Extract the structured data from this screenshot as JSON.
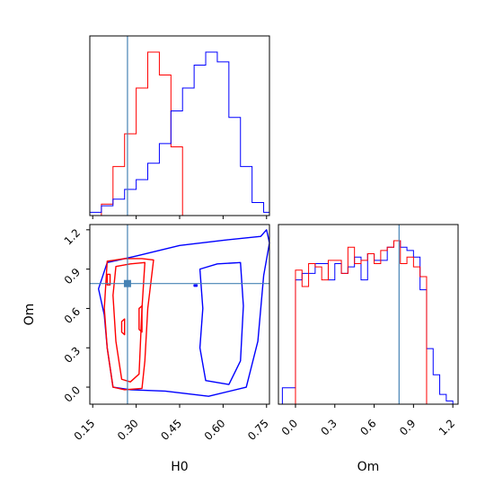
{
  "chart_data": {
    "type": "corner",
    "parameters": [
      "H0",
      "Om"
    ],
    "truth": {
      "H0": 0.27,
      "Om": 0.79
    },
    "colors": {
      "red": "#ff0000",
      "blue": "#0000ff",
      "truth": "#4682b4"
    },
    "axes": {
      "H0": {
        "range": [
          0.14,
          0.76
        ],
        "ticks": [
          0.15,
          0.3,
          0.45,
          0.6,
          0.75
        ],
        "tick_labels": [
          "0.15",
          "0.30",
          "0.45",
          "0.60",
          "0.75"
        ],
        "label": "H0"
      },
      "Om": {
        "range": [
          -0.13,
          1.24
        ],
        "ticks": [
          0.0,
          0.3,
          0.6,
          0.9,
          1.2
        ],
        "tick_labels_x": [
          "0.0",
          "0.3",
          "0.6",
          "0.9",
          "1.2"
        ],
        "tick_labels_y": [
          "0.0",
          "0.3",
          "0.6",
          "0.9",
          "1.2"
        ],
        "label": "Om"
      }
    },
    "hist_H0": {
      "bin_edges": [
        0.14,
        0.18,
        0.22,
        0.26,
        0.3,
        0.34,
        0.38,
        0.42,
        0.46,
        0.5,
        0.54,
        0.58,
        0.62,
        0.66,
        0.7,
        0.74,
        0.76
      ],
      "red": [
        0,
        0.07,
        0.3,
        0.5,
        0.78,
        1.0,
        0.86,
        0.42,
        0,
        0,
        0,
        0,
        0,
        0,
        0,
        0
      ],
      "blue": [
        0.02,
        0.06,
        0.1,
        0.16,
        0.22,
        0.32,
        0.44,
        0.64,
        0.78,
        0.92,
        1.0,
        0.94,
        0.6,
        0.3,
        0.08,
        0.02
      ]
    },
    "hist_Om": {
      "bin_edges": [
        -0.1,
        0.0,
        0.05,
        0.1,
        0.15,
        0.2,
        0.25,
        0.3,
        0.35,
        0.4,
        0.45,
        0.5,
        0.55,
        0.6,
        0.65,
        0.7,
        0.75,
        0.8,
        0.85,
        0.9,
        0.95,
        1.0,
        1.05,
        1.1,
        1.15,
        1.2
      ],
      "red": [
        0,
        0.82,
        0.72,
        0.86,
        0.84,
        0.76,
        0.88,
        0.88,
        0.8,
        0.96,
        0.86,
        0.88,
        0.92,
        0.86,
        0.94,
        0.96,
        1.0,
        0.86,
        0.9,
        0.84,
        0.78,
        0,
        0,
        0,
        0
      ],
      "blue": [
        0.1,
        0.76,
        0.8,
        0.8,
        0.86,
        0.86,
        0.76,
        0.86,
        0.8,
        0.84,
        0.9,
        0.76,
        0.92,
        0.88,
        0.88,
        0.96,
        1.0,
        0.96,
        0.94,
        0.9,
        0.7,
        0.34,
        0.18,
        0.06,
        0.02
      ]
    },
    "contours_red": [
      [
        [
          0.2,
          0.96
        ],
        [
          0.26,
          0.98
        ],
        [
          0.32,
          0.98
        ],
        [
          0.36,
          0.97
        ],
        [
          0.34,
          0.6
        ],
        [
          0.33,
          0.2
        ],
        [
          0.32,
          -0.01
        ],
        [
          0.26,
          -0.02
        ],
        [
          0.22,
          0.0
        ],
        [
          0.2,
          0.3
        ],
        [
          0.19,
          0.6
        ]
      ],
      [
        [
          0.23,
          0.92
        ],
        [
          0.28,
          0.94
        ],
        [
          0.33,
          0.95
        ],
        [
          0.32,
          0.6
        ],
        [
          0.31,
          0.1
        ],
        [
          0.28,
          0.04
        ],
        [
          0.25,
          0.06
        ],
        [
          0.23,
          0.35
        ],
        [
          0.22,
          0.7
        ]
      ],
      [
        [
          0.2,
          0.86
        ],
        [
          0.21,
          0.86
        ],
        [
          0.21,
          0.78
        ],
        [
          0.2,
          0.78
        ]
      ],
      [
        [
          0.25,
          0.5
        ],
        [
          0.26,
          0.52
        ],
        [
          0.26,
          0.4
        ],
        [
          0.25,
          0.42
        ]
      ],
      [
        [
          0.31,
          0.6
        ],
        [
          0.32,
          0.62
        ],
        [
          0.32,
          0.42
        ],
        [
          0.31,
          0.44
        ]
      ]
    ],
    "contours_blue": [
      [
        [
          0.2,
          0.95
        ],
        [
          0.3,
          1.0
        ],
        [
          0.45,
          1.08
        ],
        [
          0.6,
          1.12
        ],
        [
          0.73,
          1.15
        ],
        [
          0.75,
          1.2
        ],
        [
          0.76,
          1.1
        ],
        [
          0.74,
          0.85
        ],
        [
          0.72,
          0.35
        ],
        [
          0.68,
          0.0
        ],
        [
          0.55,
          -0.07
        ],
        [
          0.4,
          -0.03
        ],
        [
          0.28,
          -0.02
        ],
        [
          0.22,
          0.0
        ],
        [
          0.2,
          0.3
        ],
        [
          0.19,
          0.55
        ],
        [
          0.17,
          0.75
        ]
      ],
      [
        [
          0.52,
          0.9
        ],
        [
          0.58,
          0.94
        ],
        [
          0.66,
          0.95
        ],
        [
          0.67,
          0.62
        ],
        [
          0.66,
          0.2
        ],
        [
          0.62,
          0.02
        ],
        [
          0.54,
          0.05
        ],
        [
          0.52,
          0.3
        ],
        [
          0.53,
          0.6
        ]
      ],
      [
        [
          0.5,
          0.78
        ],
        [
          0.51,
          0.78
        ],
        [
          0.51,
          0.77
        ],
        [
          0.5,
          0.77
        ]
      ]
    ],
    "markers": [
      {
        "series": "truth",
        "x": 0.27,
        "y": 0.79
      }
    ]
  }
}
